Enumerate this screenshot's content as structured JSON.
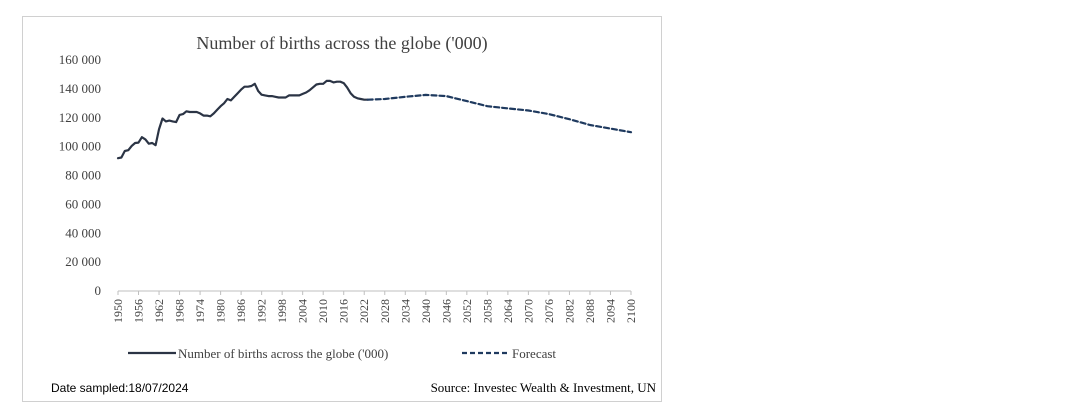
{
  "chart_data": {
    "type": "line",
    "title": "Number of births across the globe ('000)",
    "xlabel": "",
    "ylabel": "",
    "ylim": [
      0,
      160000
    ],
    "xlim": [
      1950,
      2100
    ],
    "y_ticks": [
      0,
      20000,
      40000,
      60000,
      80000,
      100000,
      120000,
      140000,
      160000
    ],
    "y_tick_labels": [
      "0",
      "20 000",
      "40 000",
      "60 000",
      "80 000",
      "100 000",
      "120 000",
      "140 000",
      "160 000"
    ],
    "x_tick_labels": [
      "1950",
      "1956",
      "1962",
      "1968",
      "1974",
      "1980",
      "1986",
      "1992",
      "1998",
      "2004",
      "2010",
      "2016",
      "2022",
      "2028",
      "2034",
      "2040",
      "2046",
      "2052",
      "2058",
      "2064",
      "2070",
      "2076",
      "2082",
      "2088",
      "2094",
      "2100"
    ],
    "grid": false,
    "legend_position": "bottom",
    "series": [
      {
        "name": "Number of births across the globe ('000)",
        "style": "solid",
        "color": "#2b3445",
        "x": [
          1950,
          1951,
          1952,
          1953,
          1954,
          1955,
          1956,
          1957,
          1958,
          1959,
          1960,
          1961,
          1962,
          1963,
          1964,
          1965,
          1966,
          1967,
          1968,
          1969,
          1970,
          1971,
          1972,
          1973,
          1974,
          1975,
          1976,
          1977,
          1978,
          1979,
          1980,
          1981,
          1982,
          1983,
          1984,
          1985,
          1986,
          1987,
          1988,
          1989,
          1990,
          1991,
          1992,
          1993,
          1994,
          1995,
          1996,
          1997,
          1998,
          1999,
          2000,
          2001,
          2002,
          2003,
          2004,
          2005,
          2006,
          2007,
          2008,
          2009,
          2010,
          2011,
          2012,
          2013,
          2014,
          2015,
          2016,
          2017,
          2018,
          2019,
          2020,
          2021,
          2022,
          2023
        ],
        "values": [
          92000,
          92500,
          97000,
          97500,
          100500,
          102500,
          102800,
          106500,
          105000,
          102000,
          102500,
          101000,
          112000,
          119500,
          117500,
          118000,
          117500,
          117000,
          122000,
          122500,
          124500,
          124000,
          124000,
          124000,
          123000,
          121500,
          121500,
          121000,
          123000,
          125500,
          128000,
          130000,
          133000,
          132000,
          134500,
          137000,
          139500,
          141500,
          141500,
          142000,
          143500,
          138500,
          136000,
          135500,
          135000,
          135000,
          134500,
          134000,
          134000,
          134000,
          135500,
          135500,
          135500,
          135500,
          136500,
          137500,
          139000,
          141000,
          143000,
          143500,
          143500,
          145500,
          145500,
          144500,
          145000,
          145000,
          144000,
          141000,
          137000,
          134500,
          133500,
          133000,
          132500,
          132500
        ]
      },
      {
        "name": "Forecast",
        "style": "dashed",
        "color": "#1f3a5f",
        "x": [
          2023,
          2028,
          2034,
          2040,
          2046,
          2052,
          2058,
          2064,
          2070,
          2076,
          2082,
          2088,
          2094,
          2100
        ],
        "values": [
          132500,
          133000,
          134500,
          135800,
          135000,
          131500,
          128000,
          126500,
          125000,
          122500,
          119000,
          115000,
          112500,
          110000
        ]
      }
    ]
  },
  "footer": {
    "date_sampled": "Date sampled:18/07/2024",
    "source": "Source: Investec Wealth & Investment, UN"
  }
}
